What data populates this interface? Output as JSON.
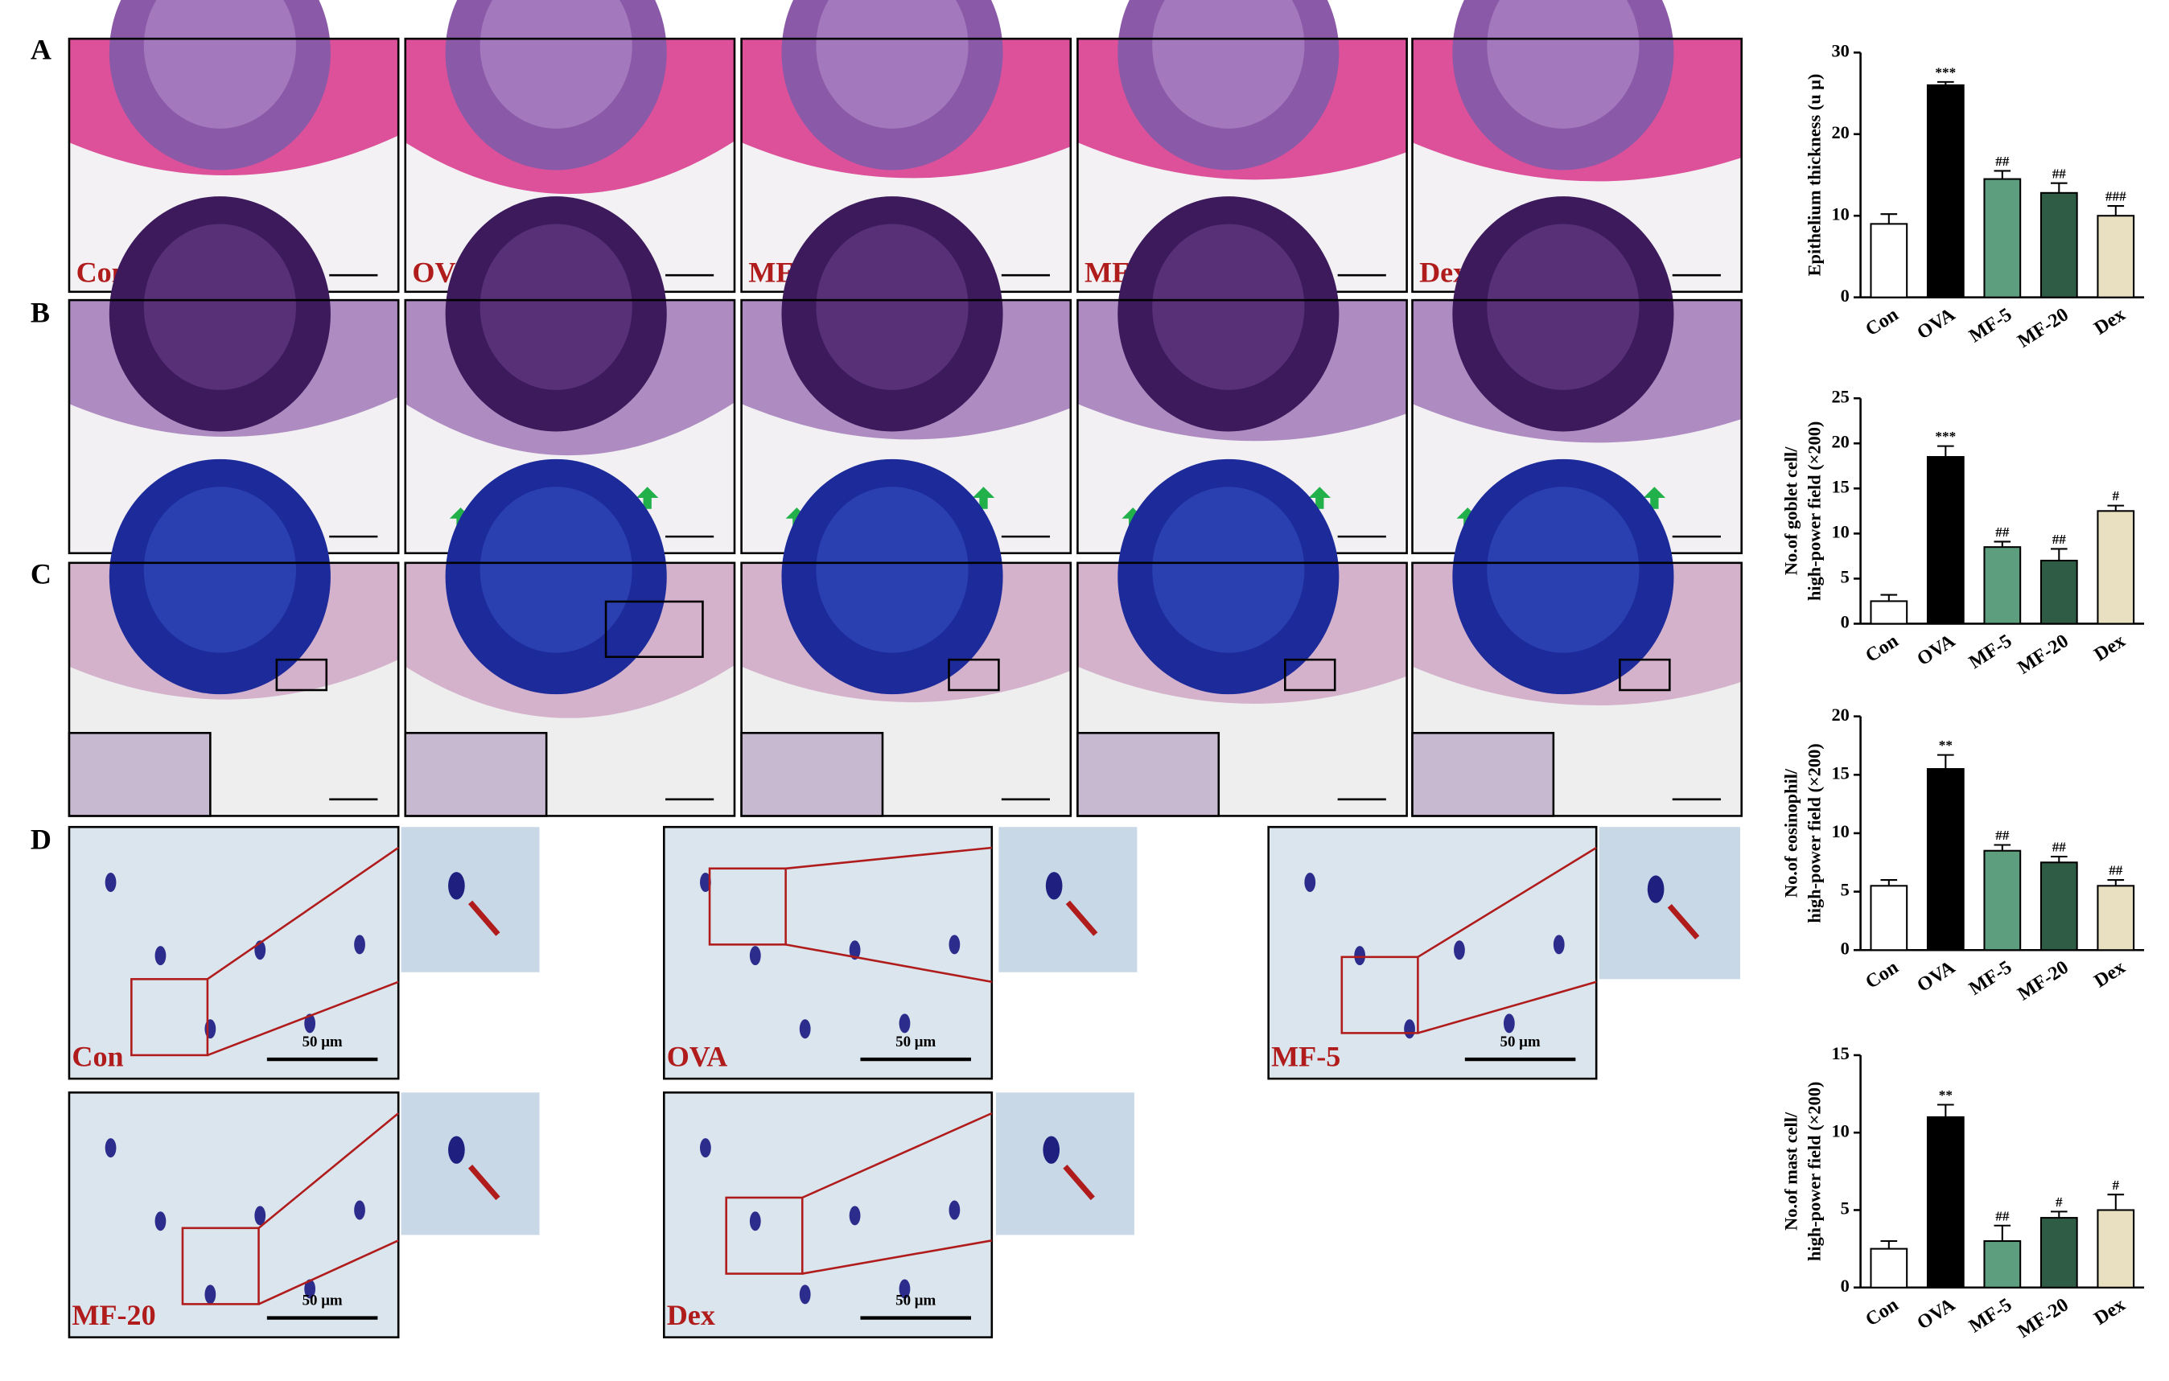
{
  "figure": {
    "panel_labels": [
      "A",
      "B",
      "C",
      "D"
    ],
    "groups": [
      "Con",
      "OVA",
      "MF-5",
      "MF-20",
      "Dex"
    ],
    "scale_bar": "50 μm"
  },
  "chart_data": [
    {
      "type": "bar",
      "ylabel": [
        "Epithelium thickness (u μ)"
      ],
      "categories": [
        "Con",
        "OVA",
        "MF-5",
        "MF-20",
        "Dex"
      ],
      "values": [
        9,
        26,
        14.5,
        12.8,
        10
      ],
      "errors": [
        1.2,
        0.4,
        1,
        1.2,
        1.2
      ],
      "annotations": [
        null,
        "***",
        "##",
        "##",
        "###"
      ],
      "colors": [
        "#ffffff",
        "#000000",
        "#5c9e7e",
        "#2f5c45",
        "#e9e0c2"
      ],
      "ylim": [
        0,
        30
      ],
      "yticks": [
        0,
        10,
        20,
        30
      ]
    },
    {
      "type": "bar",
      "ylabel": [
        "No.of goblet cell/",
        "high-power field (×200)"
      ],
      "categories": [
        "Con",
        "OVA",
        "MF-5",
        "MF-20",
        "Dex"
      ],
      "values": [
        2.5,
        18.5,
        8.5,
        7,
        12.5
      ],
      "errors": [
        0.7,
        1.2,
        0.6,
        1.3,
        0.6
      ],
      "annotations": [
        null,
        "***",
        "##",
        "##",
        "#"
      ],
      "colors": [
        "#ffffff",
        "#000000",
        "#5c9e7e",
        "#2f5c45",
        "#e9e0c2"
      ],
      "ylim": [
        0,
        25
      ],
      "yticks": [
        0,
        5,
        10,
        15,
        20,
        25
      ]
    },
    {
      "type": "bar",
      "ylabel": [
        "No.of eosinophil/",
        "high-power field (×200)"
      ],
      "categories": [
        "Con",
        "OVA",
        "MF-5",
        "MF-20",
        "Dex"
      ],
      "values": [
        5.5,
        15.5,
        8.5,
        7.5,
        5.5
      ],
      "errors": [
        0.5,
        1.2,
        0.5,
        0.5,
        0.5
      ],
      "annotations": [
        null,
        "**",
        "##",
        "##",
        "##"
      ],
      "colors": [
        "#ffffff",
        "#000000",
        "#5c9e7e",
        "#2f5c45",
        "#e9e0c2"
      ],
      "ylim": [
        0,
        20
      ],
      "yticks": [
        0,
        5,
        10,
        15,
        20
      ]
    },
    {
      "type": "bar",
      "ylabel": [
        "No.of mast cell/",
        "high-power field (×200)"
      ],
      "categories": [
        "Con",
        "OVA",
        "MF-5",
        "MF-20",
        "Dex"
      ],
      "values": [
        2.5,
        11,
        3,
        4.5,
        5
      ],
      "errors": [
        0.5,
        0.8,
        1,
        0.4,
        1
      ],
      "annotations": [
        null,
        "**",
        "##",
        "#",
        "#"
      ],
      "colors": [
        "#ffffff",
        "#000000",
        "#5c9e7e",
        "#2f5c45",
        "#e9e0c2"
      ],
      "ylim": [
        0,
        15
      ],
      "yticks": [
        0,
        5,
        10,
        15
      ]
    }
  ]
}
